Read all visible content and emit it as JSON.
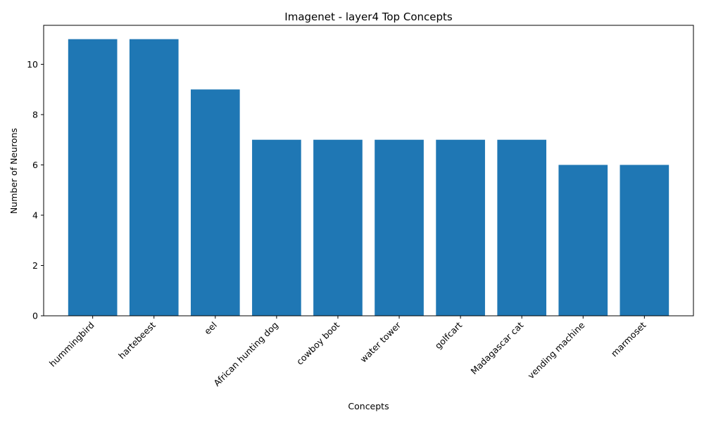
{
  "chart_data": {
    "type": "bar",
    "title": "Imagenet - layer4 Top Concepts",
    "xlabel": "Concepts",
    "ylabel": "Number of Neurons",
    "categories": [
      "hummingbird",
      "hartebeest",
      "eel",
      "African hunting dog",
      "cowboy boot",
      "water tower",
      "golfcart",
      "Madagascar cat",
      "vending machine",
      "marmoset"
    ],
    "values": [
      11,
      11,
      9,
      7,
      7,
      7,
      7,
      7,
      6,
      6
    ],
    "ylim": [
      0,
      11.55
    ],
    "yticks": [
      0,
      2,
      4,
      6,
      8,
      10
    ],
    "bar_color": "#1f77b4",
    "grid": false,
    "legend": "none"
  }
}
